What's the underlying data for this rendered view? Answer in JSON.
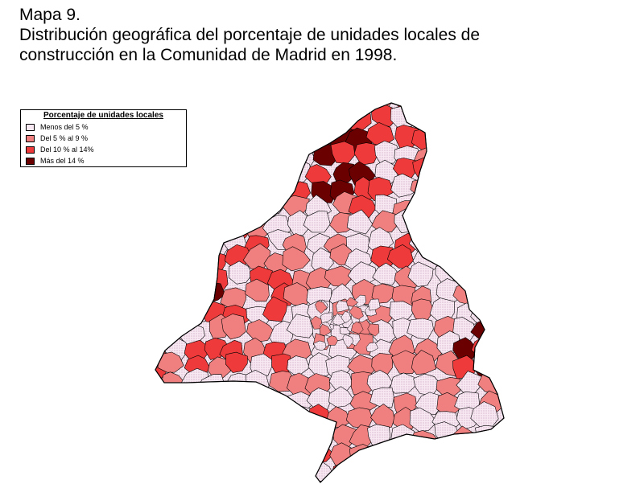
{
  "title": {
    "line1": "Mapa 9.",
    "line2": "Distribución geográfica del porcentaje de unidades locales de",
    "line3": "construcción en la Comunidad de Madrid en 1998."
  },
  "legend": {
    "title": "Porcentaje de unidades locales",
    "items": [
      {
        "label": "Menos del 5 %",
        "color": "#f7e8f2"
      },
      {
        "label": "Del 5 % al 9 %",
        "color": "#f08080"
      },
      {
        "label": "Del 10 % al 14%",
        "color": "#ee3a3a"
      },
      {
        "label": "Más del 14 %",
        "color": "#6b0000"
      }
    ]
  },
  "map": {
    "region": "Comunidad de Madrid",
    "outline_color": "#000000"
  }
}
